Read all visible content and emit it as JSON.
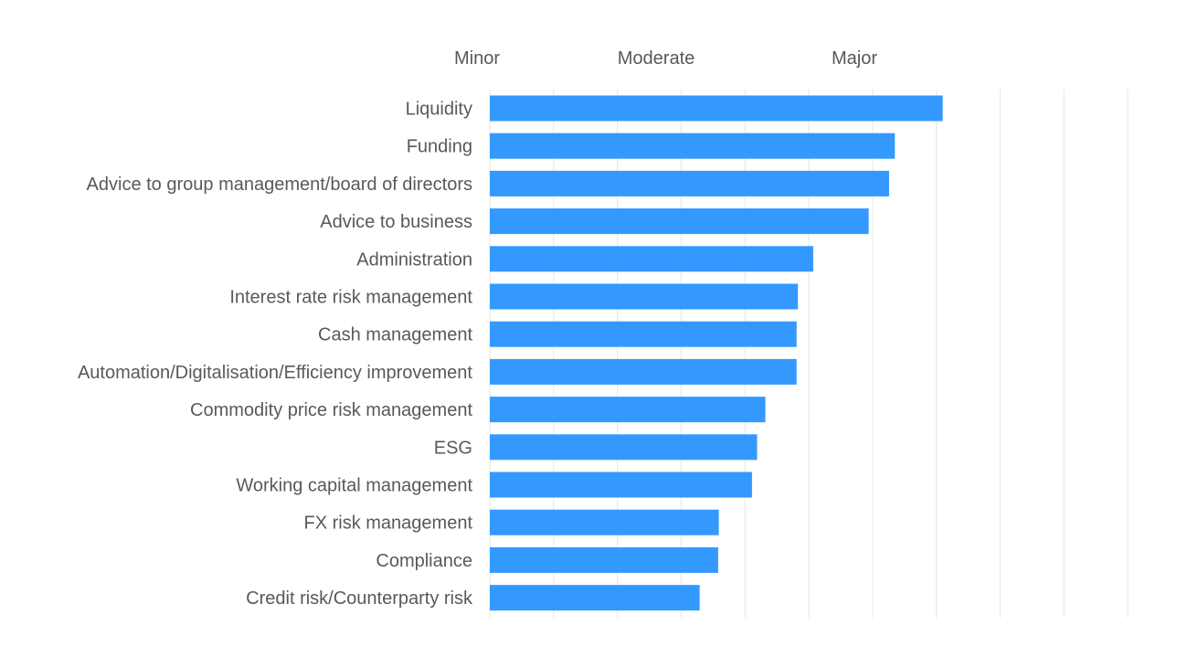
{
  "chart_data": {
    "type": "bar",
    "orientation": "horizontal",
    "categories": [
      "Liquidity",
      "Funding",
      "Advice to group management/board of directors",
      "Advice to business",
      "Administration",
      "Interest rate risk management",
      "Cash management",
      "Automation/Digitalisation/Efficiency improvement",
      "Commodity price risk management",
      "ESG",
      "Working capital management",
      "FX risk management",
      "Compliance",
      "Credit risk/Counterparty risk"
    ],
    "values": [
      7.1,
      6.35,
      6.26,
      5.94,
      5.07,
      4.83,
      4.81,
      4.81,
      4.32,
      4.19,
      4.11,
      3.59,
      3.58,
      3.29
    ],
    "xlim": [
      0,
      10
    ],
    "x_gridlines": [
      0,
      1,
      2,
      3,
      4,
      5,
      6,
      7,
      8,
      9,
      10
    ],
    "level_labels": [
      {
        "label": "Minor",
        "at": 0
      },
      {
        "label": "Moderate",
        "at": 2.5
      },
      {
        "label": "Major",
        "at": 5.75
      }
    ],
    "grid": true,
    "legend": "none",
    "bar_color": "#3399ff",
    "grid_color": "#e6e6e6",
    "text_color": "#595959"
  }
}
